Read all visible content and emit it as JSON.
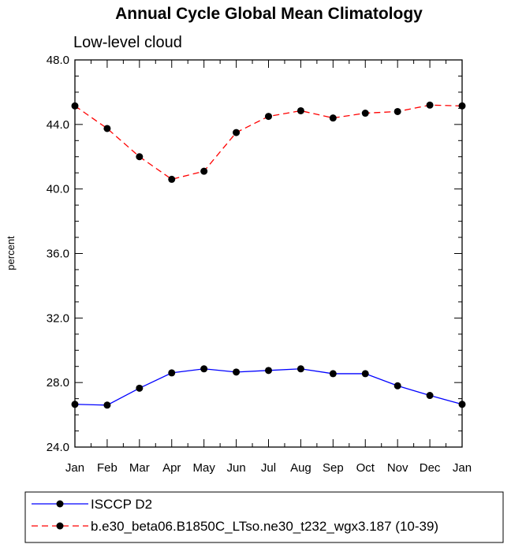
{
  "chart_data": {
    "type": "line",
    "title": "Annual Cycle Global Mean Climatology",
    "subtitle": "Low-level cloud",
    "xlabel": "",
    "ylabel": "percent",
    "categories": [
      "Jan",
      "Feb",
      "Mar",
      "Apr",
      "May",
      "Jun",
      "Jul",
      "Aug",
      "Sep",
      "Oct",
      "Nov",
      "Dec",
      "Jan"
    ],
    "ylim": [
      24.0,
      48.0
    ],
    "yticks": [
      "24.0",
      "28.0",
      "32.0",
      "36.0",
      "40.0",
      "44.0",
      "48.0"
    ],
    "grid": false,
    "legend_position": "bottom",
    "series": [
      {
        "name": "ISCCP D2",
        "color": "#0000ff",
        "dash": "solid",
        "values": [
          26.65,
          26.6,
          27.65,
          28.6,
          28.85,
          28.65,
          28.75,
          28.85,
          28.55,
          28.55,
          27.8,
          27.2,
          26.65
        ]
      },
      {
        "name": "b.e30_beta06.B1850C_LTso.ne30_t232_wgx3.187 (10-39)",
        "color": "#ff0000",
        "dash": "dashed",
        "values": [
          45.15,
          43.75,
          42.0,
          40.6,
          41.1,
          43.5,
          44.5,
          44.85,
          44.4,
          44.7,
          44.8,
          45.2,
          45.15
        ]
      }
    ]
  }
}
